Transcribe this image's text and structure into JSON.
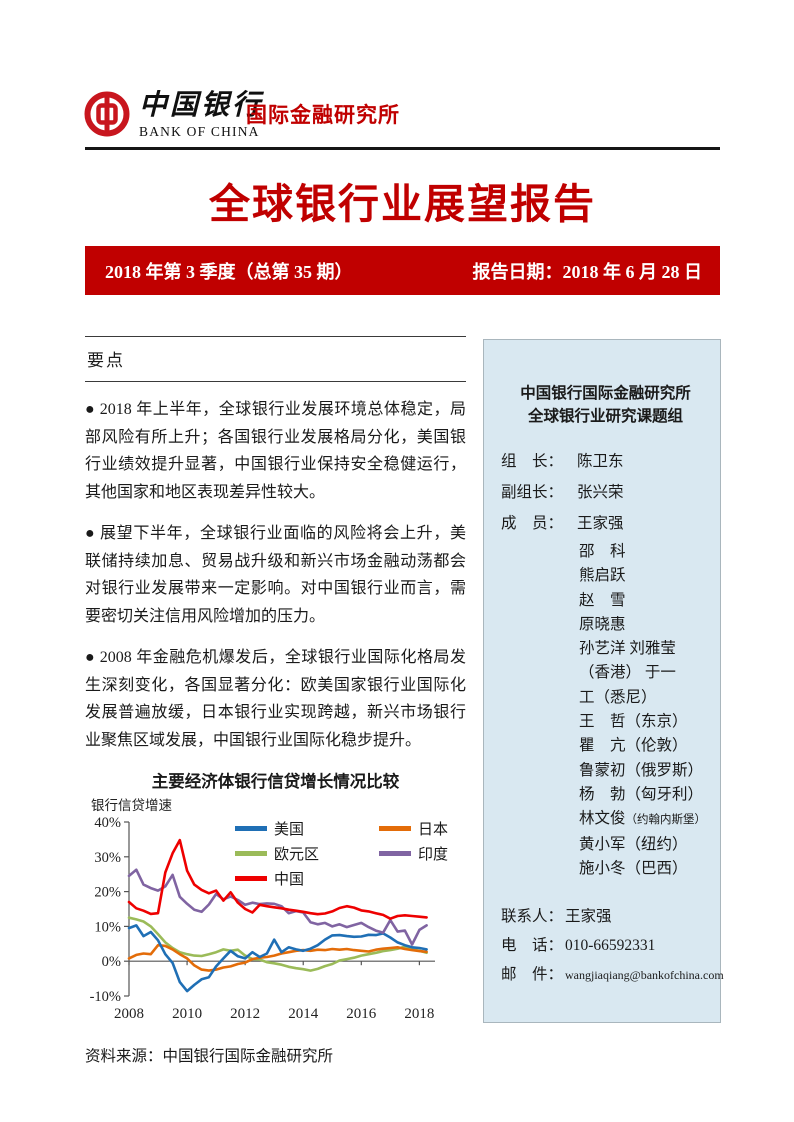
{
  "header": {
    "logo": {
      "cn": "中国银行",
      "en": "BANK OF CHINA"
    },
    "institute": "国际金融研究所"
  },
  "title": "全球银行业展望报告",
  "banner": {
    "issue": "2018 年第 3 季度（总第 35 期）",
    "report_date": "报告日期：2018 年 6 月 28 日"
  },
  "highlights": {
    "heading": "要点",
    "bullets": [
      "● 2018 年上半年，全球银行业发展环境总体稳定，局部风险有所上升；各国银行业发展格局分化，美国银行业绩效提升显著，中国银行业保持安全稳健运行，其他国家和地区表现差异性较大。",
      "● 展望下半年，全球银行业面临的风险将会上升，美联储持续加息、贸易战升级和新兴市场金融动荡都会对银行业发展带来一定影响。对中国银行业而言，需要密切关注信用风险增加的压力。",
      "● 2008 年金融危机爆发后，全球银行业国际化格局发生深刻变化，各国显著分化：欧美国家银行业国际化发展普遍放缓，日本银行业实现跨越，新兴市场银行业聚焦区域发展，中国银行业国际化稳步提升。"
    ]
  },
  "chart_data": {
    "type": "line",
    "title": "主要经济体银行信贷增长情况比较",
    "ylabel": "银行信贷增速",
    "source": "资料来源：中国银行国际金融研究所",
    "xlim": [
      2008,
      2018.4
    ],
    "ylim": [
      -10,
      40
    ],
    "x_ticks": [
      2008,
      2010,
      2012,
      2014,
      2016,
      2018
    ],
    "y_ticks": [
      40,
      30,
      20,
      10,
      0,
      -10
    ],
    "grid": false,
    "legend_position": "top-inside",
    "x_start": 2008,
    "x_step": 0.25,
    "series": [
      {
        "name": "美国",
        "color": "#1f6fb5",
        "values": [
          9.5,
          10.3,
          7.2,
          8.4,
          6.0,
          2.0,
          -0.5,
          -6.0,
          -8.6,
          -6.8,
          -5.2,
          -4.6,
          -1.5,
          0.8,
          3.0,
          1.4,
          0.8,
          2.6,
          1.2,
          2.2,
          6.2,
          2.6,
          4.0,
          3.4,
          3.0,
          3.6,
          4.6,
          6.2,
          7.4,
          7.5,
          7.2,
          7.0,
          7.1,
          7.6,
          7.5,
          8.0,
          6.8,
          5.4,
          4.6,
          4.0,
          3.8,
          3.4
        ]
      },
      {
        "name": "日本",
        "color": "#e36c09",
        "values": [
          0.8,
          1.8,
          2.2,
          2.0,
          4.6,
          4.4,
          3.4,
          2.0,
          0.8,
          -1.2,
          -2.4,
          -2.7,
          -2.4,
          -1.8,
          -1.5,
          -0.8,
          -0.4,
          0.6,
          1.0,
          1.2,
          1.6,
          2.2,
          2.6,
          3.0,
          3.2,
          3.0,
          3.3,
          3.2,
          3.5,
          3.3,
          3.5,
          3.2,
          3.0,
          2.8,
          3.3,
          3.6,
          3.8,
          4.0,
          3.5,
          3.2,
          2.9,
          2.7
        ]
      },
      {
        "name": "欧元区",
        "color": "#9bbb59",
        "values": [
          12.5,
          12.0,
          11.4,
          10.0,
          7.8,
          5.4,
          3.8,
          2.6,
          2.0,
          1.6,
          1.5,
          2.0,
          2.6,
          3.4,
          3.0,
          3.3,
          1.6,
          0.6,
          0.5,
          -0.3,
          -0.6,
          -1.0,
          -1.6,
          -2.0,
          -2.3,
          -2.7,
          -2.2,
          -1.4,
          -0.8,
          0.2,
          0.6,
          1.0,
          1.6,
          2.0,
          2.4,
          2.9,
          3.2,
          3.6,
          4.2,
          3.4,
          3.0,
          2.4
        ]
      },
      {
        "name": "印度",
        "color": "#8064a2",
        "values": [
          24.5,
          26.3,
          22.0,
          21.0,
          20.3,
          21.5,
          24.8,
          18.5,
          16.5,
          14.8,
          14.2,
          16.3,
          19.3,
          17.8,
          18.6,
          17.6,
          16.2,
          16.8,
          16.4,
          16.6,
          16.5,
          15.8,
          13.8,
          14.4,
          14.0,
          11.2,
          10.6,
          11.0,
          10.0,
          10.6,
          9.8,
          10.4,
          11.0,
          9.8,
          8.8,
          8.2,
          11.8,
          8.5,
          8.8,
          4.8,
          9.0,
          10.3
        ]
      },
      {
        "name": "中国",
        "color": "#ee0000",
        "values": [
          17.0,
          15.2,
          14.5,
          13.6,
          13.8,
          25.5,
          31.0,
          34.8,
          26.0,
          22.0,
          20.5,
          19.5,
          20.3,
          17.4,
          19.8,
          16.8,
          15.0,
          14.0,
          16.2,
          15.8,
          15.5,
          15.2,
          14.8,
          14.5,
          14.2,
          13.8,
          13.5,
          13.7,
          14.3,
          15.3,
          15.8,
          15.4,
          14.6,
          14.3,
          13.8,
          13.3,
          12.2,
          13.0,
          13.2,
          13.0,
          12.8,
          12.6
        ]
      }
    ]
  },
  "sidebar": {
    "title_line1": "中国银行国际金融研究所",
    "title_line2": "全球银行业研究课题组",
    "rows": [
      {
        "label": "组　长：",
        "value": "陈卫东"
      },
      {
        "label": "副组长：",
        "value": "张兴荣"
      },
      {
        "label": "成　员：",
        "value": "王家强"
      }
    ],
    "members": [
      {
        "t": "邵　科"
      },
      {
        "t": "熊启跃"
      },
      {
        "t": "赵　雪"
      },
      {
        "t": "原晓惠"
      },
      {
        "t": "孙艺洋 刘雅莹"
      },
      {
        "t": "（香港） 于一"
      },
      {
        "t": "工（悉尼）"
      },
      {
        "t": "王　哲（东京）"
      },
      {
        "t": "瞿　亢（伦敦）"
      },
      {
        "t": "鲁蒙初（俄罗斯）"
      },
      {
        "t": "杨　勃（匈牙利）"
      },
      {
        "t": "林文俊",
        "s": "（约翰内斯堡）"
      },
      {
        "t": "黄小军（纽约）"
      },
      {
        "t": "施小冬（巴西）"
      }
    ],
    "contacts": [
      {
        "label": "联系人：",
        "value": "王家强"
      },
      {
        "label": "电　话：",
        "value": "010-66592331"
      },
      {
        "label": "邮　件：",
        "value": "wangjiaqiang@bankofchina.com",
        "small": true
      }
    ]
  },
  "colors": {
    "brand_red": "#c00000",
    "emblem_red": "#c8161e",
    "sidebar_bg": "#d9e8f1"
  }
}
